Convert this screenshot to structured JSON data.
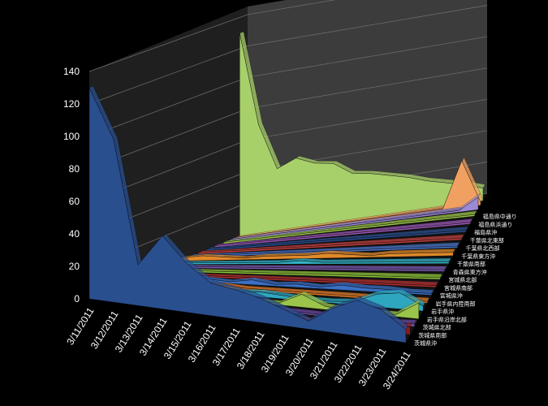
{
  "chart_data": {
    "type": "area",
    "is_3d": true,
    "title": "",
    "xlabel": "",
    "ylabel": "",
    "ylim": [
      0,
      140
    ],
    "y_ticks": [
      0,
      20,
      40,
      60,
      80,
      100,
      120,
      140
    ],
    "grid": true,
    "legend": "none",
    "categories": [
      "3/11/2011",
      "3/12/2011",
      "3/13/2011",
      "3/14/2011",
      "3/15/2011",
      "3/16/2011",
      "3/17/2011",
      "3/18/2011",
      "3/19/2011",
      "3/20/2011",
      "3/21/2011",
      "3/22/2011",
      "3/23/2011",
      "3/24/2011"
    ],
    "series": [
      {
        "name": "茨城県沖",
        "color": "#2a4f8f",
        "values": [
          130,
          100,
          25,
          45,
          30,
          20,
          18,
          15,
          10,
          5,
          15,
          22,
          18,
          8
        ]
      },
      {
        "name": "茨城県南部",
        "color": "#8b1a1a",
        "values": [
          3,
          2,
          2,
          3,
          2,
          2,
          1,
          1,
          1,
          1,
          1,
          1,
          2,
          5
        ]
      },
      {
        "name": "茨城県北部",
        "color": "#6b4aa0",
        "values": [
          2,
          2,
          1,
          2,
          1,
          1,
          1,
          1,
          1,
          1,
          1,
          1,
          1,
          2
        ]
      },
      {
        "name": "岩手県沿岸北部",
        "color": "#9bc44a",
        "values": [
          2,
          2,
          1,
          1,
          1,
          1,
          1,
          1,
          8,
          2,
          1,
          1,
          1,
          10
        ]
      },
      {
        "name": "岩手県沖",
        "color": "#2fa6bf",
        "values": [
          2,
          3,
          2,
          1,
          2,
          2,
          3,
          2,
          1,
          1,
          2,
          8,
          10,
          3
        ]
      },
      {
        "name": "岩手県内陸南部",
        "color": "#e07b2a",
        "values": [
          1,
          1,
          1,
          1,
          2,
          1,
          1,
          1,
          1,
          1,
          1,
          1,
          1,
          1
        ]
      },
      {
        "name": "宮城県沖",
        "color": "#3a6fc4",
        "values": [
          2,
          2,
          3,
          2,
          1,
          3,
          1,
          2,
          1,
          3,
          2,
          2,
          1,
          1
        ]
      },
      {
        "name": "宮城県南部",
        "color": "#b03030",
        "values": [
          1,
          1,
          1,
          1,
          1,
          1,
          1,
          1,
          1,
          1,
          1,
          1,
          1,
          1
        ]
      },
      {
        "name": "宮城県北部",
        "color": "#8fc43a",
        "values": [
          1,
          1,
          1,
          1,
          1,
          1,
          1,
          1,
          1,
          1,
          1,
          1,
          1,
          1
        ]
      },
      {
        "name": "青森県東方沖",
        "color": "#7a5ab0",
        "values": [
          1,
          1,
          1,
          1,
          1,
          1,
          1,
          1,
          1,
          1,
          1,
          1,
          1,
          1
        ]
      },
      {
        "name": "千葉県南部",
        "color": "#34b4c8",
        "values": [
          1,
          1,
          1,
          1,
          1,
          1,
          2,
          1,
          1,
          1,
          1,
          1,
          1,
          1
        ]
      },
      {
        "name": "千葉県東方沖",
        "color": "#e08a2a",
        "values": [
          2,
          3,
          2,
          1,
          2,
          2,
          2,
          3,
          2,
          1,
          2,
          2,
          2,
          2
        ]
      },
      {
        "name": "千葉県北西部",
        "color": "#4a74c8",
        "values": [
          1,
          1,
          1,
          1,
          1,
          1,
          1,
          1,
          1,
          1,
          1,
          1,
          1,
          1
        ]
      },
      {
        "name": "千葉県北東部",
        "color": "#c04040",
        "values": [
          1,
          1,
          1,
          1,
          1,
          1,
          1,
          1,
          1,
          1,
          1,
          1,
          1,
          1
        ]
      },
      {
        "name": "福島県沖",
        "color": "#2a4f8f",
        "values": [
          1,
          1,
          1,
          1,
          1,
          1,
          1,
          1,
          1,
          1,
          1,
          1,
          1,
          1
        ]
      },
      {
        "name": "福島県浜通り",
        "color": "#9b59b6",
        "values": [
          1,
          1,
          1,
          1,
          1,
          1,
          1,
          1,
          1,
          1,
          1,
          1,
          1,
          1
        ]
      },
      {
        "name": "福島県中通り",
        "color": "#9bc44a",
        "values": [
          1,
          1,
          1,
          1,
          1,
          1,
          1,
          1,
          1,
          1,
          1,
          1,
          1,
          1
        ]
      }
    ],
    "back_series": [
      {
        "color": "#a8d06a",
        "values": [
          130,
          70,
          40,
          45,
          40,
          38,
          30,
          28,
          25,
          22,
          18,
          15,
          12,
          8
        ]
      },
      {
        "color": "#f0a060",
        "values": [
          1,
          1,
          1,
          1,
          1,
          1,
          1,
          1,
          1,
          1,
          1,
          1,
          30,
          2
        ]
      },
      {
        "color": "#9b8ad6",
        "values": [
          1,
          1,
          1,
          1,
          1,
          1,
          1,
          1,
          1,
          1,
          1,
          1,
          1,
          8
        ]
      }
    ]
  }
}
